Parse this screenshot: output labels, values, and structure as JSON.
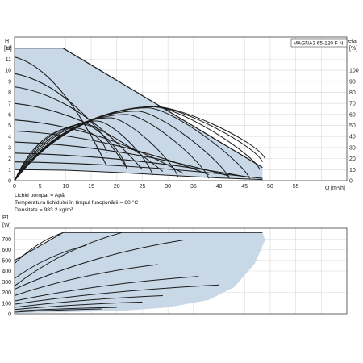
{
  "colors": {
    "fill": "#c9d8e6",
    "curve": "#1a1a1a",
    "grid": "#d8d8d8",
    "frame": "#444444"
  },
  "chart_data": [
    {
      "type": "line",
      "model": "MAGNA3 65-120 F N",
      "y_label_top": "H",
      "y_unit": "[m]",
      "y2_label_top": "eta",
      "y2_unit": "[%]",
      "x_label": "Q",
      "x_unit": "[m³/h]",
      "xlim": [
        0,
        65
      ],
      "ylim": [
        0,
        13
      ],
      "y2lim": [
        0,
        130
      ],
      "x_ticks": [
        0,
        5,
        10,
        15,
        20,
        25,
        30,
        35,
        40,
        45,
        50,
        55
      ],
      "y_ticks": [
        0,
        1,
        2,
        3,
        4,
        5,
        6,
        7,
        8,
        9,
        10,
        11,
        12
      ],
      "y2_ticks": [
        0,
        10,
        20,
        30,
        40,
        50,
        60,
        70,
        80,
        90,
        100
      ],
      "grid": true,
      "max_envelope": [
        [
          0,
          12
        ],
        [
          9.5,
          12
        ],
        [
          48.5,
          1.2
        ]
      ],
      "min_envelope": [
        [
          0,
          1
        ],
        [
          10,
          0.95
        ],
        [
          20,
          0.75
        ],
        [
          30,
          0.5
        ],
        [
          40,
          0.25
        ],
        [
          48.5,
          0.1
        ]
      ],
      "speed_curves": [
        {
          "shutoff": 11.2,
          "end_q": 18
        },
        {
          "shutoff": 9.7,
          "end_q": 22
        },
        {
          "shutoff": 8.5,
          "end_q": 25
        },
        {
          "shutoff": 7.0,
          "end_q": 29
        },
        {
          "shutoff": 5.5,
          "end_q": 33
        },
        {
          "shutoff": 4.5,
          "end_q": 38
        },
        {
          "shutoff": 3.5,
          "end_q": 42
        },
        {
          "shutoff": 2.5,
          "end_q": 46
        },
        {
          "shutoff": 1.7,
          "end_q": 48.5
        }
      ],
      "efficiency_curves": [
        {
          "end_q": 18,
          "end_eta": 25
        },
        {
          "end_q": 22,
          "end_eta": 10
        },
        {
          "end_q": 27,
          "end_eta": 5
        },
        {
          "end_q": 32,
          "end_eta": 3
        },
        {
          "end_q": 38,
          "end_eta": 2
        },
        {
          "end_q": 42,
          "end_eta": 2
        },
        {
          "end_q": 46,
          "end_eta": 2
        },
        {
          "end_q": 48,
          "end_eta": 10
        },
        {
          "end_q": 48.5,
          "end_eta": 17
        },
        {
          "end_q": 49,
          "end_eta": 20
        }
      ],
      "efficiency_peak": {
        "q": 25,
        "eta": 67
      }
    },
    {
      "type": "line",
      "y_label_top": "P1",
      "y_unit": "[W]",
      "xlim": [
        0,
        65
      ],
      "ylim": [
        0,
        800
      ],
      "y_ticks": [
        0,
        100,
        200,
        300,
        400,
        500,
        600,
        700
      ],
      "grid": true,
      "max_envelope": [
        [
          0,
          500
        ],
        [
          9.5,
          760
        ],
        [
          48.5,
          760
        ]
      ],
      "region_lower_edge": [
        [
          0,
          5
        ],
        [
          20,
          25
        ],
        [
          30,
          60
        ],
        [
          38,
          130
        ],
        [
          43,
          250
        ],
        [
          47,
          470
        ],
        [
          49,
          690
        ]
      ],
      "power_curves": [
        {
          "p0": 470,
          "end_q": 9.5,
          "end_p": 760
        },
        {
          "p0": 330,
          "end_q": 14,
          "end_p": 640
        },
        {
          "p0": 260,
          "end_q": 21,
          "end_p": 760
        },
        {
          "p0": 230,
          "end_q": 33,
          "end_p": 690
        },
        {
          "p0": 170,
          "end_q": 28,
          "end_p": 460
        },
        {
          "p0": 120,
          "end_q": 36,
          "end_p": 350
        },
        {
          "p0": 90,
          "end_q": 40,
          "end_p": 270
        },
        {
          "p0": 60,
          "end_q": 29,
          "end_p": 170
        },
        {
          "p0": 40,
          "end_q": 25,
          "end_p": 110
        },
        {
          "p0": 25,
          "end_q": 20,
          "end_p": 60
        },
        {
          "p0": 15,
          "end_q": 17,
          "end_p": 45
        }
      ]
    }
  ],
  "info": {
    "line1": "Lichid pompat = Apă",
    "line2": "Temperatura lichidului în timpul funcționării = 60 °C",
    "line3": "Densitate = 983.2 kg/m³"
  }
}
